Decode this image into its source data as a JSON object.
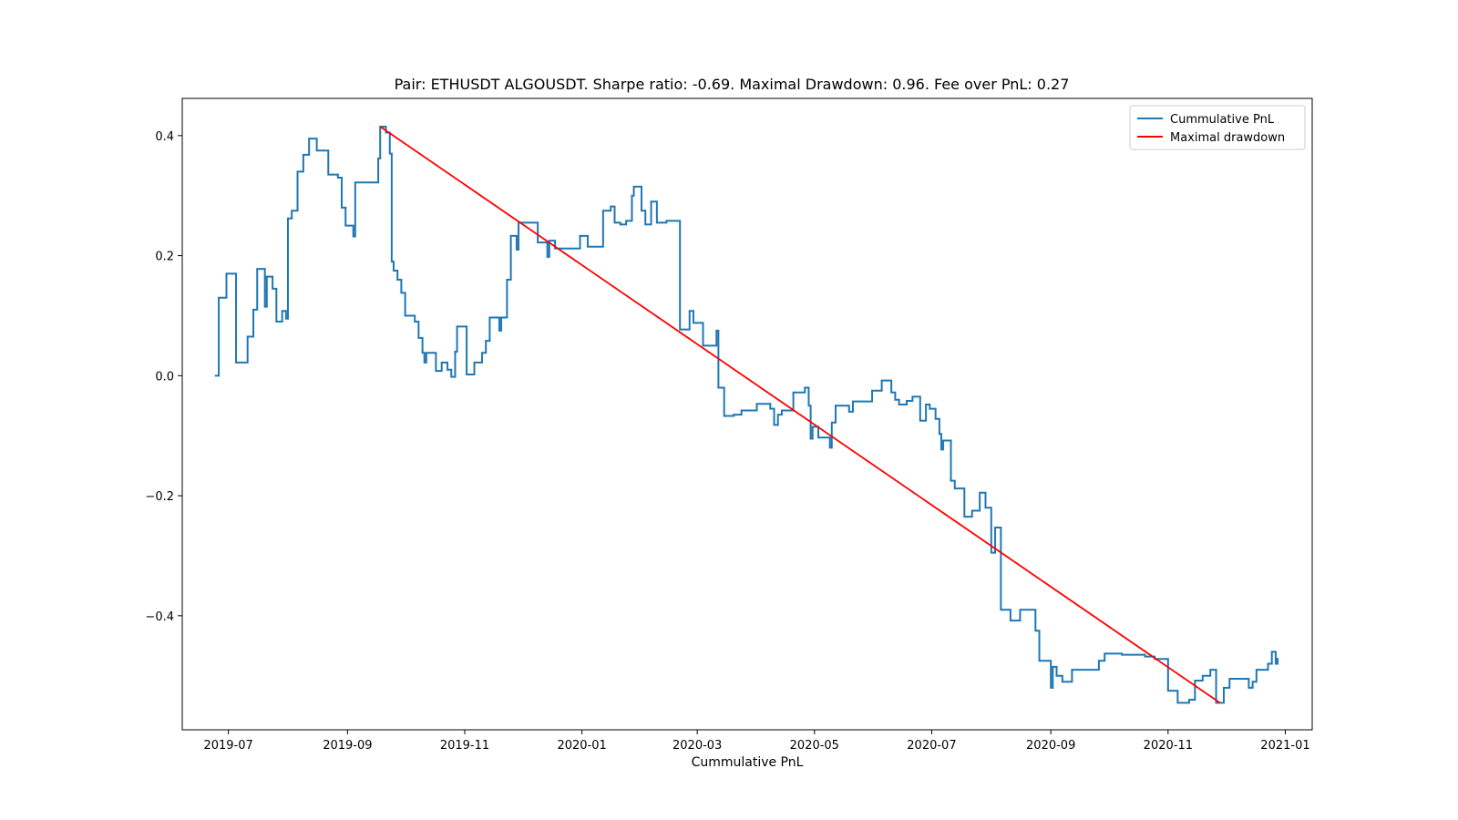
{
  "chart_data": {
    "type": "line",
    "title": "Pair: ETHUSDT ALGOUSDT. Sharpe ratio: -0.69. Maximal Drawdown: 0.96. Fee over PnL: 0.27",
    "xlabel": "Cummulative PnL",
    "ylabel": "",
    "x_axis_type": "date",
    "xlim": [
      "2019-06-07",
      "2021-01-15"
    ],
    "ylim": [
      -0.59,
      0.462
    ],
    "x_ticks": [
      "2019-07-01",
      "2019-09-01",
      "2019-11-01",
      "2020-01-01",
      "2020-03-01",
      "2020-05-01",
      "2020-07-01",
      "2020-09-01",
      "2020-11-01",
      "2021-01-01"
    ],
    "x_tick_labels": [
      "2019-07",
      "2019-09",
      "2019-11",
      "2020-01",
      "2020-03",
      "2020-05",
      "2020-07",
      "2020-09",
      "2020-11",
      "2021-01"
    ],
    "y_ticks": [
      0.4,
      0.2,
      0.0,
      -0.2,
      -0.4
    ],
    "y_tick_labels": [
      "0.4",
      "0.2",
      "0.0",
      "−0.2",
      "−0.4"
    ],
    "grid": false,
    "legend_position": "top-right",
    "series": [
      {
        "name": "Cummulative PnL",
        "color": "#1f77b4",
        "step": true,
        "points": [
          [
            "2019-06-24",
            0.0
          ],
          [
            "2019-06-26",
            0.13
          ],
          [
            "2019-06-30",
            0.17
          ],
          [
            "2019-07-05",
            0.022
          ],
          [
            "2019-07-11",
            0.065
          ],
          [
            "2019-07-14",
            0.11
          ],
          [
            "2019-07-16",
            0.178
          ],
          [
            "2019-07-20",
            0.115
          ],
          [
            "2019-07-21",
            0.165
          ],
          [
            "2019-07-24",
            0.145
          ],
          [
            "2019-07-26",
            0.09
          ],
          [
            "2019-07-29",
            0.108
          ],
          [
            "2019-07-31",
            0.095
          ],
          [
            "2019-08-01",
            0.262
          ],
          [
            "2019-08-03",
            0.275
          ],
          [
            "2019-08-06",
            0.34
          ],
          [
            "2019-08-09",
            0.368
          ],
          [
            "2019-08-12",
            0.395
          ],
          [
            "2019-08-16",
            0.375
          ],
          [
            "2019-08-22",
            0.335
          ],
          [
            "2019-08-27",
            0.33
          ],
          [
            "2019-08-29",
            0.28
          ],
          [
            "2019-08-31",
            0.25
          ],
          [
            "2019-09-04",
            0.232
          ],
          [
            "2019-09-05",
            0.322
          ],
          [
            "2019-09-17",
            0.362
          ],
          [
            "2019-09-18",
            0.415
          ],
          [
            "2019-09-21",
            0.405
          ],
          [
            "2019-09-23",
            0.37
          ],
          [
            "2019-09-24",
            0.19
          ],
          [
            "2019-09-25",
            0.175
          ],
          [
            "2019-09-27",
            0.16
          ],
          [
            "2019-09-29",
            0.138
          ],
          [
            "2019-10-01",
            0.1
          ],
          [
            "2019-10-06",
            0.09
          ],
          [
            "2019-10-08",
            0.063
          ],
          [
            "2019-10-10",
            0.038
          ],
          [
            "2019-10-11",
            0.022
          ],
          [
            "2019-10-12",
            0.038
          ],
          [
            "2019-10-17",
            0.008
          ],
          [
            "2019-10-20",
            0.022
          ],
          [
            "2019-10-23",
            0.01
          ],
          [
            "2019-10-25",
            -0.002
          ],
          [
            "2019-10-27",
            0.04
          ],
          [
            "2019-10-28",
            0.082
          ],
          [
            "2019-11-02",
            0.002
          ],
          [
            "2019-11-06",
            0.022
          ],
          [
            "2019-11-10",
            0.038
          ],
          [
            "2019-11-12",
            0.058
          ],
          [
            "2019-11-14",
            0.097
          ],
          [
            "2019-11-19",
            0.075
          ],
          [
            "2019-11-20",
            0.097
          ],
          [
            "2019-11-23",
            0.16
          ],
          [
            "2019-11-25",
            0.233
          ],
          [
            "2019-11-28",
            0.21
          ],
          [
            "2019-11-29",
            0.255
          ],
          [
            "2019-12-09",
            0.222
          ],
          [
            "2019-12-14",
            0.198
          ],
          [
            "2019-12-15",
            0.225
          ],
          [
            "2019-12-18",
            0.212
          ],
          [
            "2019-12-31",
            0.233
          ],
          [
            "2020-01-04",
            0.215
          ],
          [
            "2020-01-12",
            0.275
          ],
          [
            "2020-01-16",
            0.282
          ],
          [
            "2020-01-18",
            0.255
          ],
          [
            "2020-01-21",
            0.252
          ],
          [
            "2020-01-24",
            0.258
          ],
          [
            "2020-01-27",
            0.3
          ],
          [
            "2020-01-28",
            0.315
          ],
          [
            "2020-02-01",
            0.275
          ],
          [
            "2020-02-03",
            0.252
          ],
          [
            "2020-02-06",
            0.29
          ],
          [
            "2020-02-09",
            0.255
          ],
          [
            "2020-02-14",
            0.258
          ],
          [
            "2020-02-21",
            0.077
          ],
          [
            "2020-02-26",
            0.108
          ],
          [
            "2020-02-28",
            0.088
          ],
          [
            "2020-03-04",
            0.05
          ],
          [
            "2020-03-11",
            0.075
          ],
          [
            "2020-03-12",
            -0.02
          ],
          [
            "2020-03-15",
            -0.067
          ],
          [
            "2020-03-20",
            -0.065
          ],
          [
            "2020-03-24",
            -0.058
          ],
          [
            "2020-04-01",
            -0.047
          ],
          [
            "2020-04-08",
            -0.055
          ],
          [
            "2020-04-10",
            -0.082
          ],
          [
            "2020-04-12",
            -0.065
          ],
          [
            "2020-04-14",
            -0.058
          ],
          [
            "2020-04-20",
            -0.028
          ],
          [
            "2020-04-26",
            -0.02
          ],
          [
            "2020-04-28",
            -0.05
          ],
          [
            "2020-04-29",
            -0.105
          ],
          [
            "2020-04-30",
            -0.085
          ],
          [
            "2020-05-03",
            -0.103
          ],
          [
            "2020-05-09",
            -0.12
          ],
          [
            "2020-05-10",
            -0.078
          ],
          [
            "2020-05-12",
            -0.05
          ],
          [
            "2020-05-19",
            -0.06
          ],
          [
            "2020-05-21",
            -0.043
          ],
          [
            "2020-05-31",
            -0.025
          ],
          [
            "2020-06-05",
            -0.008
          ],
          [
            "2020-06-10",
            -0.028
          ],
          [
            "2020-06-12",
            -0.04
          ],
          [
            "2020-06-14",
            -0.048
          ],
          [
            "2020-06-18",
            -0.042
          ],
          [
            "2020-06-21",
            -0.035
          ],
          [
            "2020-06-25",
            -0.075
          ],
          [
            "2020-06-28",
            -0.048
          ],
          [
            "2020-06-30",
            -0.055
          ],
          [
            "2020-07-03",
            -0.072
          ],
          [
            "2020-07-05",
            -0.097
          ],
          [
            "2020-07-06",
            -0.123
          ],
          [
            "2020-07-07",
            -0.108
          ],
          [
            "2020-07-11",
            -0.175
          ],
          [
            "2020-07-13",
            -0.188
          ],
          [
            "2020-07-18",
            -0.235
          ],
          [
            "2020-07-22",
            -0.225
          ],
          [
            "2020-07-26",
            -0.195
          ],
          [
            "2020-07-29",
            -0.22
          ],
          [
            "2020-08-01",
            -0.295
          ],
          [
            "2020-08-03",
            -0.253
          ],
          [
            "2020-08-06",
            -0.39
          ],
          [
            "2020-08-11",
            -0.408
          ],
          [
            "2020-08-16",
            -0.39
          ],
          [
            "2020-08-24",
            -0.425
          ],
          [
            "2020-08-26",
            -0.475
          ],
          [
            "2020-09-01",
            -0.52
          ],
          [
            "2020-09-02",
            -0.485
          ],
          [
            "2020-09-04",
            -0.5
          ],
          [
            "2020-09-07",
            -0.51
          ],
          [
            "2020-09-12",
            -0.49
          ],
          [
            "2020-09-26",
            -0.475
          ],
          [
            "2020-09-29",
            -0.463
          ],
          [
            "2020-10-08",
            -0.465
          ],
          [
            "2020-10-20",
            -0.468
          ],
          [
            "2020-10-25",
            -0.472
          ],
          [
            "2020-11-01",
            -0.525
          ],
          [
            "2020-11-06",
            -0.545
          ],
          [
            "2020-11-12",
            -0.54
          ],
          [
            "2020-11-15",
            -0.508
          ],
          [
            "2020-11-19",
            -0.5
          ],
          [
            "2020-11-23",
            -0.49
          ],
          [
            "2020-11-26",
            -0.545
          ],
          [
            "2020-11-30",
            -0.52
          ],
          [
            "2020-12-03",
            -0.505
          ],
          [
            "2020-12-13",
            -0.52
          ],
          [
            "2020-12-15",
            -0.51
          ],
          [
            "2020-12-17",
            -0.49
          ],
          [
            "2020-12-23",
            -0.48
          ],
          [
            "2020-12-25",
            -0.46
          ],
          [
            "2020-12-27",
            -0.48
          ],
          [
            "2020-12-28",
            -0.47
          ],
          [
            "2020-12-28",
            -0.472
          ]
        ]
      },
      {
        "name": "Maximal drawdown",
        "color": "#ff0000",
        "step": false,
        "points": [
          [
            "2019-09-18",
            0.415
          ],
          [
            "2020-11-28",
            -0.545
          ]
        ]
      }
    ]
  }
}
